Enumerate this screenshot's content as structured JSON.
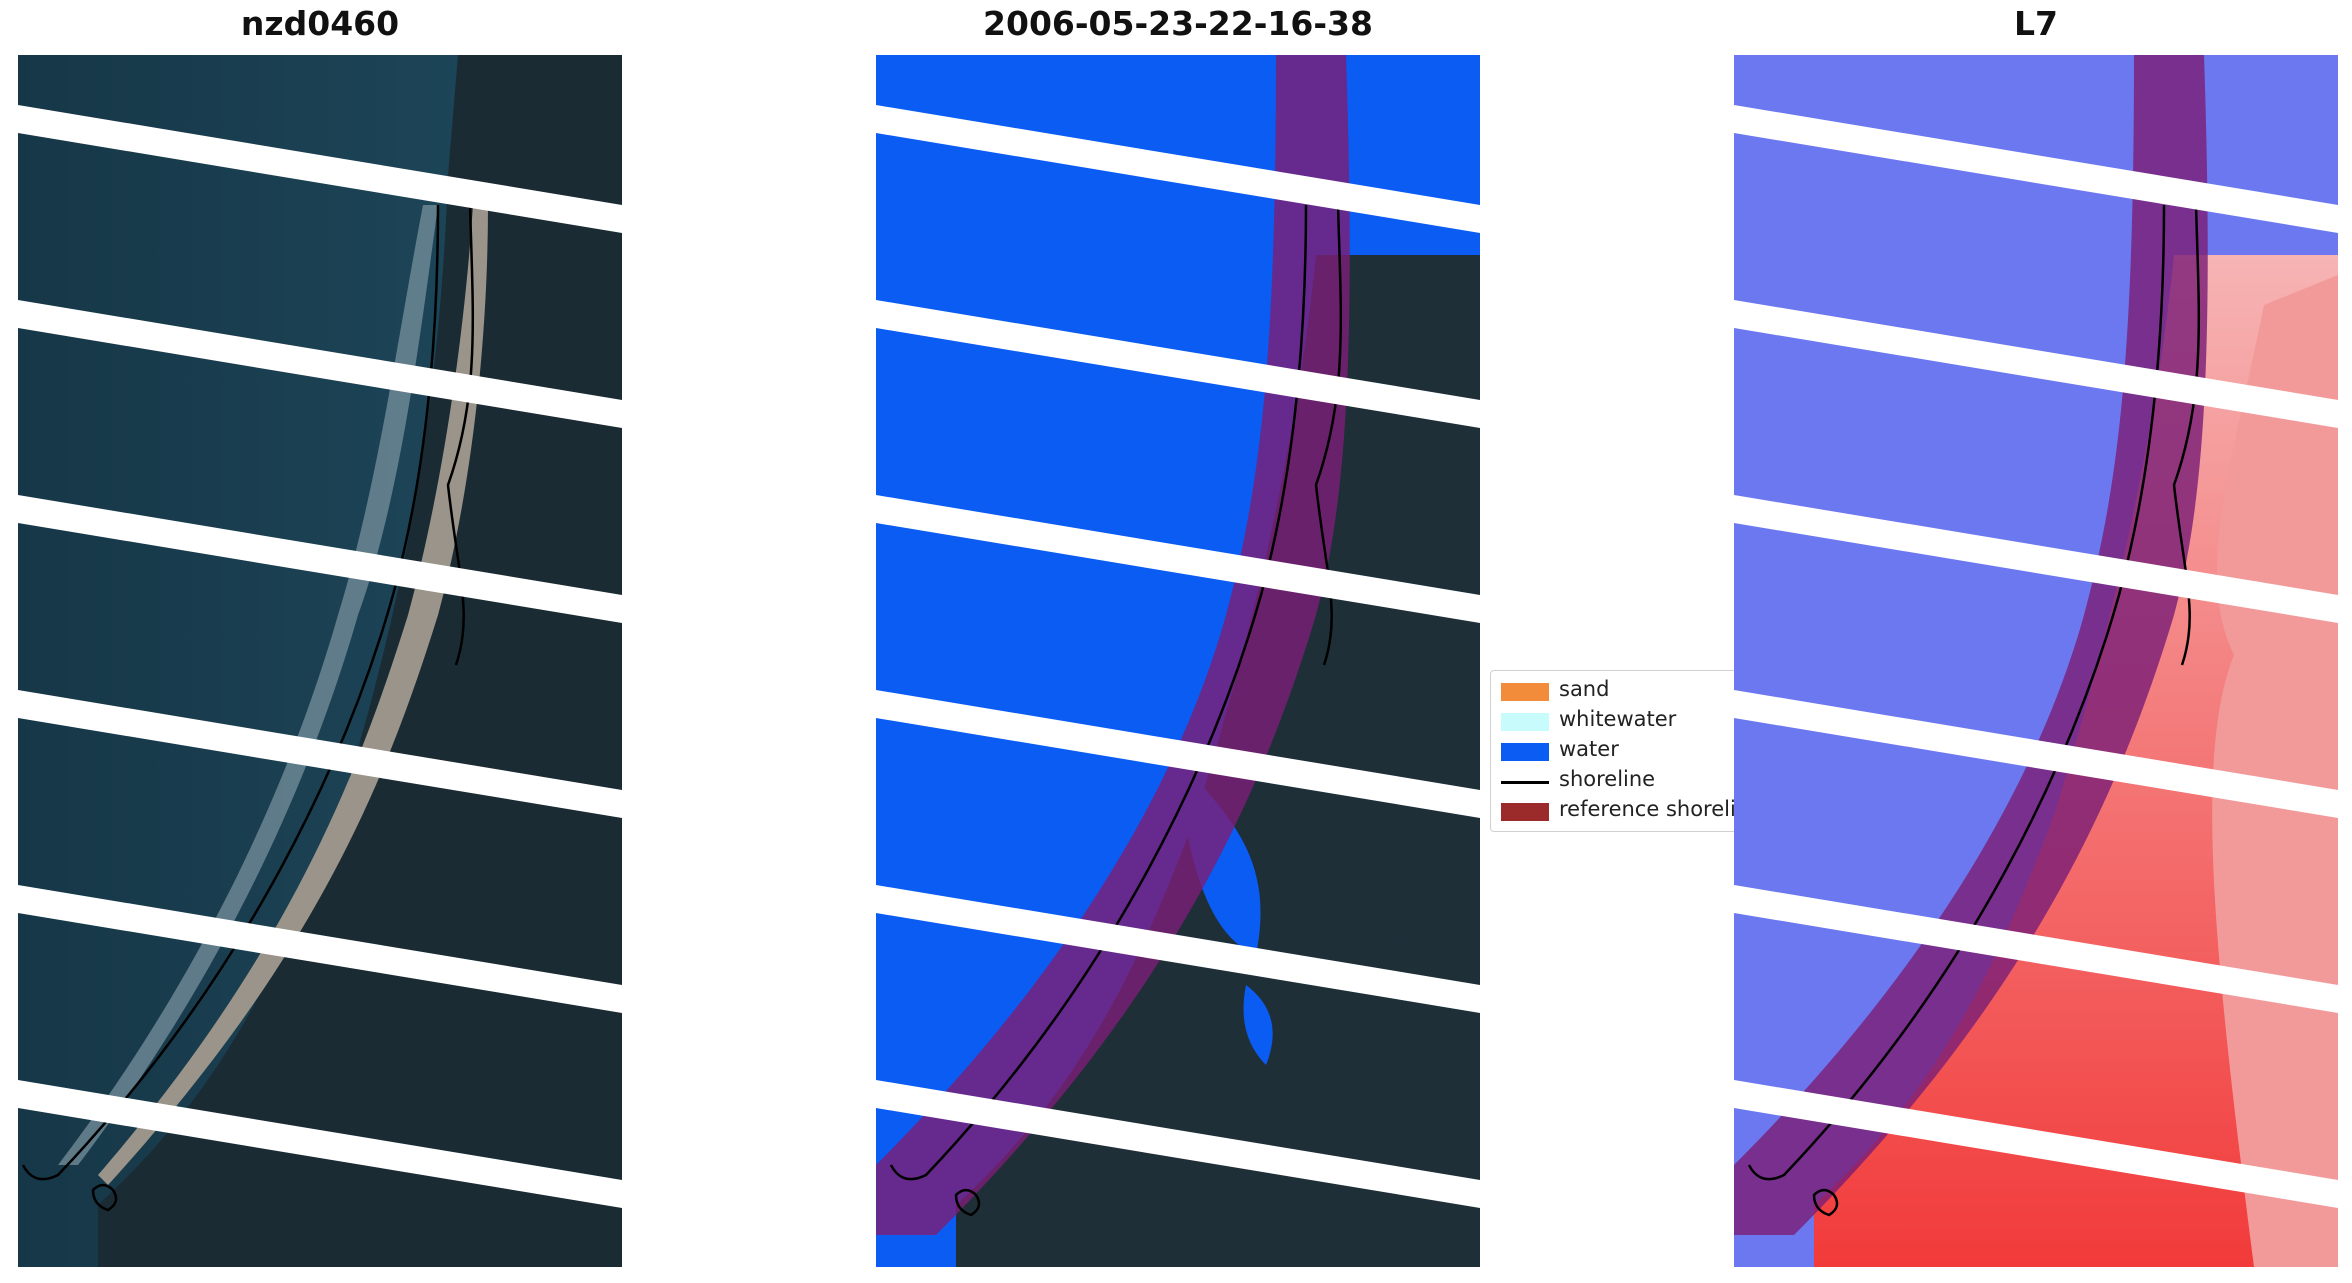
{
  "titles": {
    "site": "nzd0460",
    "date": "2006-05-23-22-16-38",
    "satellite": "L7"
  },
  "legend": {
    "items": [
      {
        "label": "sand",
        "color": "#f28c3b",
        "kind": "patch"
      },
      {
        "label": "whitewater",
        "color": "#c8fbfb",
        "kind": "patch"
      },
      {
        "label": "water",
        "color": "#0a5cf2",
        "kind": "patch"
      },
      {
        "label": "shoreline",
        "color": "#000000",
        "kind": "line"
      },
      {
        "label": "reference shoreli",
        "color": "#9b2a2a",
        "kind": "patch"
      }
    ]
  },
  "colors": {
    "deep_water": "#16384c",
    "vegetation": "#1b2a32",
    "sand": "#9a958b",
    "water_class": "#0a5cf2",
    "buffer": "#7b1f76",
    "index_blue": "#5e6cf0",
    "index_red": "#f24a4a"
  }
}
